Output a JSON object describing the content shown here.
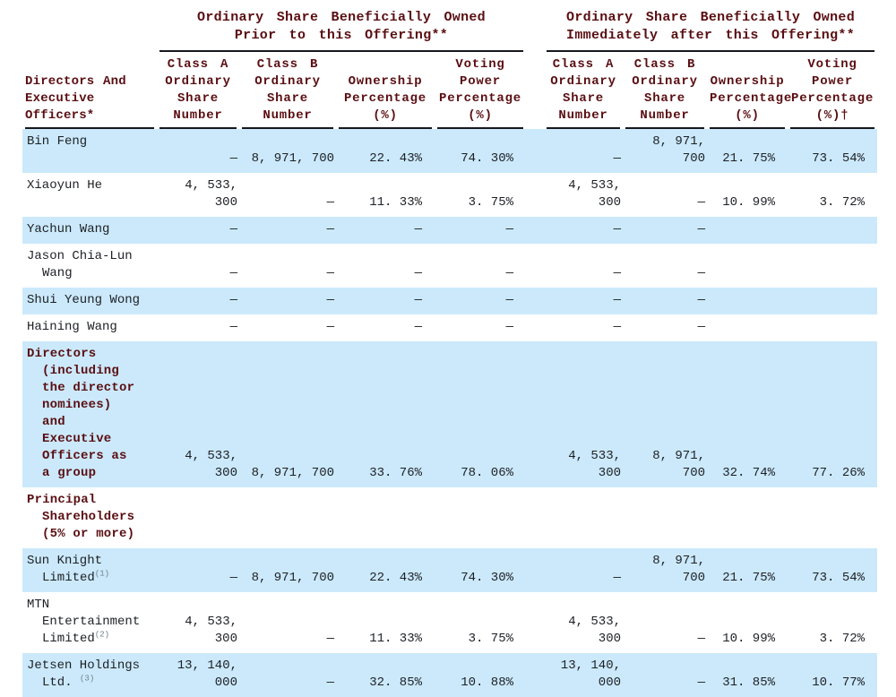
{
  "colors": {
    "stripe_blue": "#cbe9fb",
    "header_maroon": "#5a0e12",
    "text_black": "#1d2025",
    "rule_black": "#15181d",
    "footnote_gray": "#6e7e88"
  },
  "table": {
    "group_headers": {
      "left": "Ordinary Share Beneficially Owned\nPrior to this Offering**",
      "right": "Ordinary Share Beneficially Owned\nImmediately after this Offering**"
    },
    "name_header": "Directors And\nExecutive\nOfficers*",
    "column_headers": [
      "Class A\nOrdinary\nShare\nNumber",
      "Class B\nOrdinary\nShare\nNumber",
      "Ownership\nPercentage\n(%)",
      "Voting\nPower\nPercentage\n(%)",
      "Class A\nOrdinary\nShare\nNumber",
      "Class B\nOrdinary\nShare\nNumber",
      "Ownership\nPercentage\n(%)",
      "Voting\nPower\nPercentage\n(%)†"
    ],
    "rows": [
      {
        "name": "Bin Feng",
        "sup": "",
        "type": "person",
        "cells": [
          "—",
          "8, 971, 700",
          "22. 43%",
          "74. 30%",
          "—",
          "8, 971, 700",
          "21. 75%",
          "73. 54%"
        ]
      },
      {
        "name": "Xiaoyun He",
        "sup": "",
        "type": "person",
        "cells": [
          "4, 533, 300",
          "—",
          "11. 33%",
          "3. 75%",
          "4, 533, 300",
          "—",
          "10. 99%",
          "3. 72%"
        ]
      },
      {
        "name": "Yachun Wang",
        "sup": "",
        "type": "person",
        "cells": [
          "—",
          "—",
          "—",
          "—",
          "—",
          "—",
          "",
          ""
        ]
      },
      {
        "name": "Jason Chia-Lun\nWang",
        "sup": "",
        "type": "person",
        "cells": [
          "—",
          "—",
          "—",
          "—",
          "—",
          "—",
          "",
          ""
        ]
      },
      {
        "name": "Shui Yeung Wong",
        "sup": "",
        "type": "person",
        "cells": [
          "—",
          "—",
          "—",
          "—",
          "—",
          "—",
          "",
          ""
        ]
      },
      {
        "name": "Haining Wang",
        "sup": "",
        "type": "person",
        "cells": [
          "—",
          "—",
          "—",
          "—",
          "—",
          "—",
          "",
          ""
        ]
      },
      {
        "name": "Directors\n(including\nthe director\nnominees)\nand\nExecutive\nOfficers as\na group",
        "sup": "",
        "type": "section",
        "cells": [
          "4, 533, 300",
          "8, 971, 700",
          "33. 76%",
          "78. 06%",
          "4, 533, 300",
          "8, 971, 700",
          "32. 74%",
          "77. 26%"
        ]
      },
      {
        "name": "Principal\nShareholders\n(5% or more)",
        "sup": "",
        "type": "section",
        "cells": [
          "",
          "",
          "",
          "",
          "",
          "",
          "",
          ""
        ]
      },
      {
        "name": "Sun Knight\nLimited",
        "sup": "(1)",
        "type": "entity",
        "cells": [
          "—",
          "8, 971, 700",
          "22. 43%",
          "74. 30%",
          "—",
          "8, 971, 700",
          "21. 75%",
          "73. 54%"
        ]
      },
      {
        "name": "MTN\nEntertainment\nLimited",
        "sup": "(2)",
        "type": "entity",
        "cells": [
          "4, 533, 300",
          "—",
          "11. 33%",
          "3. 75%",
          "4, 533, 300",
          "—",
          "10. 99%",
          "3. 72%"
        ]
      },
      {
        "name": "Jetsen Holdings\nLtd. ",
        "sup": "(3)",
        "type": "entity",
        "cells": [
          "13, 140, 000",
          "—",
          "32. 85%",
          "10. 88%",
          "13, 140, 000",
          "—",
          "31. 85%",
          "10. 77%"
        ]
      }
    ]
  }
}
